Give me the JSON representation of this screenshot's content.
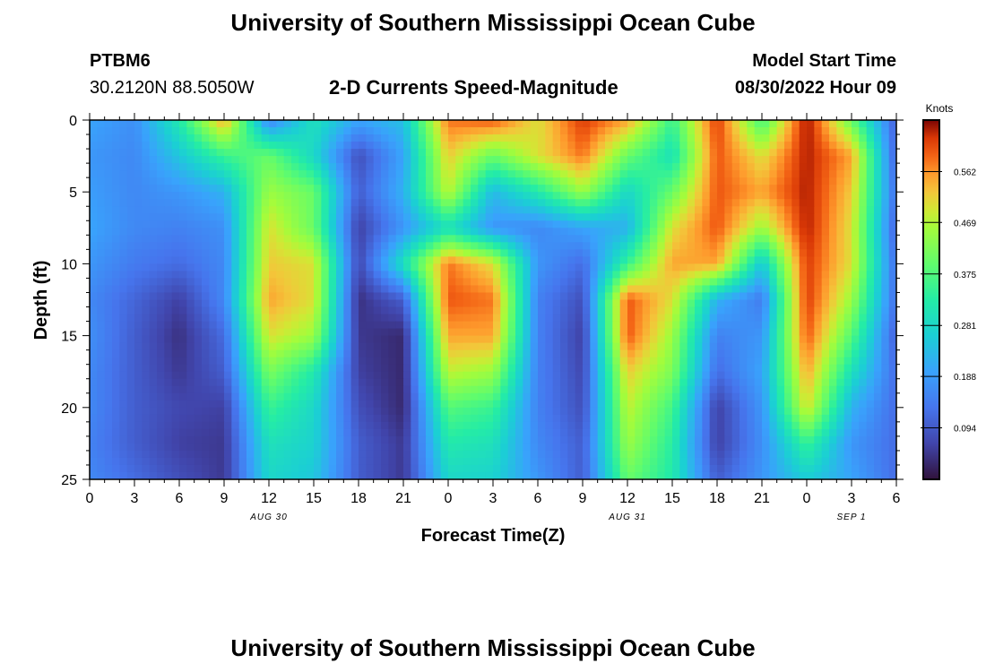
{
  "title": "University of Southern Mississippi Ocean Cube",
  "footer_title": "University of Southern Mississippi Ocean Cube",
  "station": {
    "name": "PTBM6",
    "coords": "30.2120N  88.5050W"
  },
  "subtitle": "2-D Currents Speed-Magnitude",
  "model_start": {
    "label": "Model Start Time",
    "value": "08/30/2022 Hour 09"
  },
  "colorbar": {
    "label": "Knots",
    "ticks": [
      "0.562",
      "0.469",
      "0.375",
      "0.281",
      "0.188",
      "0.094"
    ]
  },
  "chart_data": {
    "type": "heatmap",
    "xlabel": "Forecast Time(Z)",
    "ylabel": "Depth (ft)",
    "y_ticks": [
      0,
      5,
      10,
      15,
      20,
      25
    ],
    "ylim": [
      0,
      25
    ],
    "y_inverted": true,
    "x_ticks": [
      "0",
      "3",
      "6",
      "9",
      "12",
      "15",
      "18",
      "21",
      "0",
      "3",
      "6",
      "9",
      "12",
      "15",
      "18",
      "21",
      "0",
      "3",
      "6"
    ],
    "date_labels": [
      {
        "text": "AUG 30",
        "at_hour": 12
      },
      {
        "text": "AUG 31",
        "at_hour": 36
      },
      {
        "text": "SEP 1",
        "at_hour": 51
      }
    ],
    "x_hours_range": [
      0,
      54
    ],
    "colorbar_range": [
      0.0,
      0.656
    ],
    "colorbar_units": "Knots",
    "depths_ft": [
      0,
      2.5,
      5,
      7.5,
      10,
      12.5,
      15,
      17.5,
      20,
      22.5,
      25
    ],
    "hours": [
      0,
      3,
      6,
      9,
      12,
      15,
      18,
      21,
      24,
      27,
      30,
      33,
      36,
      39,
      42,
      45,
      48,
      51,
      54
    ],
    "values": [
      [
        0.2,
        0.17,
        0.32,
        0.55,
        0.15,
        0.3,
        0.2,
        0.24,
        0.58,
        0.6,
        0.5,
        0.62,
        0.55,
        0.35,
        0.62,
        0.36,
        0.65,
        0.4,
        0.1
      ],
      [
        0.18,
        0.16,
        0.25,
        0.35,
        0.4,
        0.28,
        0.08,
        0.2,
        0.52,
        0.4,
        0.5,
        0.58,
        0.4,
        0.3,
        0.6,
        0.5,
        0.64,
        0.55,
        0.1
      ],
      [
        0.19,
        0.16,
        0.18,
        0.22,
        0.45,
        0.4,
        0.1,
        0.22,
        0.48,
        0.23,
        0.32,
        0.45,
        0.28,
        0.4,
        0.6,
        0.55,
        0.64,
        0.52,
        0.12
      ],
      [
        0.2,
        0.16,
        0.15,
        0.17,
        0.5,
        0.4,
        0.06,
        0.18,
        0.3,
        0.18,
        0.16,
        0.2,
        0.22,
        0.5,
        0.6,
        0.45,
        0.64,
        0.5,
        0.1
      ],
      [
        0.18,
        0.14,
        0.12,
        0.16,
        0.52,
        0.5,
        0.07,
        0.3,
        0.58,
        0.5,
        0.18,
        0.12,
        0.35,
        0.55,
        0.55,
        0.25,
        0.62,
        0.5,
        0.12
      ],
      [
        0.16,
        0.11,
        0.06,
        0.16,
        0.55,
        0.5,
        0.04,
        0.1,
        0.6,
        0.58,
        0.15,
        0.08,
        0.6,
        0.5,
        0.22,
        0.14,
        0.62,
        0.45,
        0.12
      ],
      [
        0.17,
        0.1,
        0.04,
        0.12,
        0.5,
        0.45,
        0.05,
        0.03,
        0.55,
        0.55,
        0.15,
        0.06,
        0.6,
        0.45,
        0.15,
        0.18,
        0.6,
        0.38,
        0.1
      ],
      [
        0.16,
        0.1,
        0.05,
        0.1,
        0.42,
        0.32,
        0.06,
        0.03,
        0.48,
        0.45,
        0.15,
        0.07,
        0.52,
        0.42,
        0.12,
        0.2,
        0.55,
        0.3,
        0.12
      ],
      [
        0.16,
        0.1,
        0.07,
        0.06,
        0.35,
        0.28,
        0.08,
        0.03,
        0.38,
        0.35,
        0.15,
        0.08,
        0.48,
        0.36,
        0.06,
        0.18,
        0.5,
        0.22,
        0.12
      ],
      [
        0.15,
        0.1,
        0.06,
        0.05,
        0.3,
        0.27,
        0.1,
        0.05,
        0.32,
        0.3,
        0.16,
        0.1,
        0.45,
        0.33,
        0.06,
        0.17,
        0.35,
        0.18,
        0.12
      ],
      [
        0.16,
        0.12,
        0.08,
        0.05,
        0.28,
        0.25,
        0.1,
        0.05,
        0.28,
        0.27,
        0.18,
        0.1,
        0.4,
        0.32,
        0.1,
        0.18,
        0.26,
        0.2,
        0.12
      ]
    ]
  }
}
